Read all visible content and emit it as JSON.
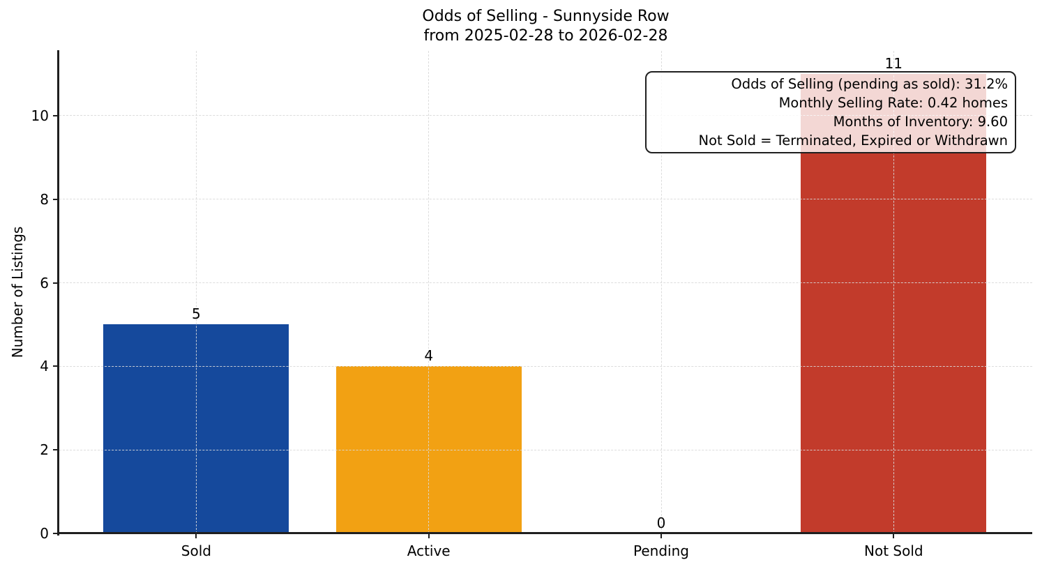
{
  "chart_data": {
    "type": "bar",
    "title": "Odds of Selling - Sunnyside Row",
    "subtitle": "from 2025-02-28 to 2026-02-28",
    "categories": [
      "Sold",
      "Active",
      "Pending",
      "Not Sold"
    ],
    "values": [
      5,
      4,
      0,
      11
    ],
    "bar_colors": [
      "#15499c",
      "#f2a113",
      null,
      "#c23b2b"
    ],
    "xlabel": "",
    "ylabel": "Number of Listings",
    "ylim": [
      0,
      11.55
    ],
    "yticks": [
      0,
      2,
      4,
      6,
      8,
      10
    ],
    "grid": true,
    "grid_linestyle": "dashed",
    "value_labels_shown": true,
    "legend": null,
    "annotation": {
      "position": "top-right",
      "text_align": "right",
      "lines": [
        "Odds of Selling (pending as sold): 31.2%",
        "Monthly Selling Rate: 0.42 homes",
        "Months of Inventory: 9.60",
        "Not Sold = Terminated, Expired or Withdrawn"
      ]
    },
    "colors": {
      "background": "#ffffff",
      "text": "#000000",
      "spine": "#1f1f1f",
      "grid": "#d9d9d9",
      "annotation_background": "#ffffff",
      "annotation_border": "#1f1f1f"
    }
  }
}
